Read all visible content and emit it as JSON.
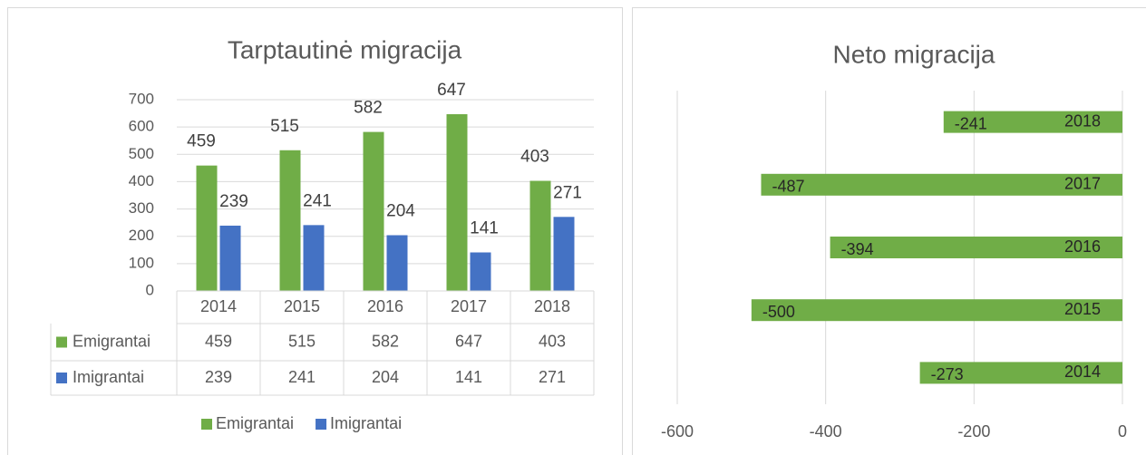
{
  "chart_data": [
    {
      "type": "bar",
      "title": "Tarptautinė migracija",
      "categories": [
        "2014",
        "2015",
        "2016",
        "2017",
        "2018"
      ],
      "series": [
        {
          "name": "Emigrantai",
          "color": "#70ad47",
          "values": [
            459,
            515,
            582,
            647,
            403
          ]
        },
        {
          "name": "Imigrantai",
          "color": "#4472c4",
          "values": [
            239,
            241,
            204,
            141,
            271
          ]
        }
      ],
      "ylim": [
        0,
        700
      ],
      "yticks": [
        0,
        100,
        200,
        300,
        400,
        500,
        600,
        700
      ],
      "grid": true,
      "data_table": true,
      "legend": "bottom"
    },
    {
      "type": "barh",
      "title": "Neto migracija",
      "categories": [
        "2014",
        "2015",
        "2016",
        "2017",
        "2018"
      ],
      "values": [
        -273,
        -500,
        -394,
        -487,
        -241
      ],
      "color": "#70ad47",
      "xlim": [
        -600,
        0
      ],
      "xticks": [
        -600,
        -400,
        -200,
        0
      ],
      "grid": true
    }
  ]
}
